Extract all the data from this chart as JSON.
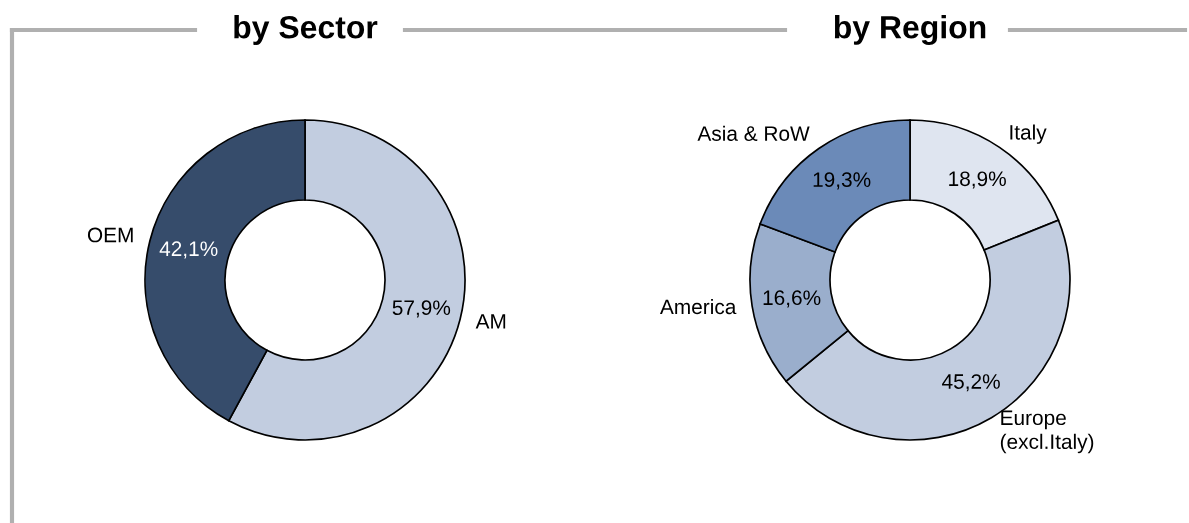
{
  "chart_data": [
    {
      "type": "donut",
      "title": "by Sector",
      "categories": [
        "AM",
        "OEM"
      ],
      "values": [
        57.9,
        42.1
      ],
      "colors": [
        "#c2cde0",
        "#364c6b"
      ],
      "value_labels": [
        "57,9%",
        "42,1%"
      ]
    },
    {
      "type": "donut",
      "title": "by Region",
      "categories": [
        "Italy",
        "Europe\n(excl.Italy)",
        "America",
        "Asia & RoW"
      ],
      "values": [
        18.9,
        45.2,
        16.6,
        19.3
      ],
      "colors": [
        "#dfe5f0",
        "#c2cde0",
        "#9aaecc",
        "#6b8ab8"
      ],
      "value_labels": [
        "18,9%",
        "45,2%",
        "16,6%",
        "19,3%"
      ]
    }
  ]
}
